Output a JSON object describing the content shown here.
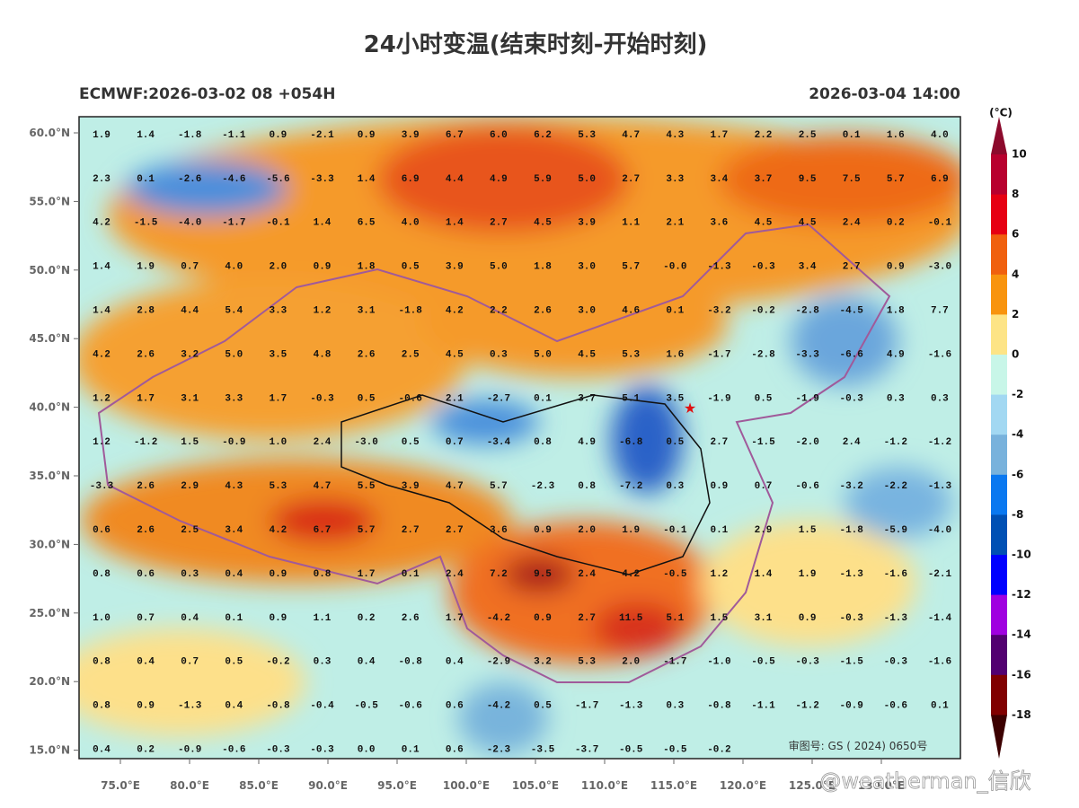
{
  "title": "24小时变温(结束时刻-开始时刻)",
  "model_run": "ECMWF:2026-03-02 08 +054H",
  "valid_time": "2026-03-04 14:00",
  "lat_labels": [
    "60.0°N",
    "55.0°N",
    "50.0°N",
    "45.0°N",
    "40.0°N",
    "35.0°N",
    "30.0°N",
    "25.0°N",
    "20.0°N",
    "15.0°N"
  ],
  "lon_labels": [
    "75.0°E",
    "80.0°E",
    "85.0°E",
    "90.0°E",
    "95.0°E",
    "100.0°E",
    "105.0°E",
    "110.0°E",
    "115.0°E",
    "120.0°E",
    "125.0°E",
    "130.0°E"
  ],
  "grid_values": [
    [
      "1.9",
      "1.4",
      "-1.8",
      "-1.1",
      "0.9",
      "-2.1",
      "0.9",
      "3.9",
      "6.7",
      "6.0",
      "6.2",
      "5.3",
      "4.7",
      "4.3",
      "1.7",
      "2.2",
      "2.5",
      "0.1",
      "1.6",
      "4.0"
    ],
    [
      "2.3",
      "0.1",
      "-2.6",
      "-4.6",
      "-5.6",
      "-3.3",
      "1.4",
      "6.9",
      "4.4",
      "4.9",
      "5.9",
      "5.0",
      "2.7",
      "3.3",
      "3.4",
      "3.7",
      "9.5",
      "7.5",
      "5.7",
      "6.9"
    ],
    [
      "4.2",
      "-1.5",
      "-4.0",
      "-1.7",
      "-0.1",
      "1.4",
      "6.5",
      "4.0",
      "1.4",
      "2.7",
      "4.5",
      "3.9",
      "1.1",
      "2.1",
      "3.6",
      "4.5",
      "4.5",
      "2.4",
      "0.2",
      "-0.1"
    ],
    [
      "1.4",
      "1.9",
      "0.7",
      "4.0",
      "2.0",
      "0.9",
      "1.8",
      "0.5",
      "3.9",
      "5.0",
      "1.8",
      "3.0",
      "5.7",
      "-0.0",
      "-1.3",
      "-0.3",
      "3.4",
      "2.7",
      "0.9",
      "-3.0"
    ],
    [
      "1.4",
      "2.8",
      "4.4",
      "5.4",
      "3.3",
      "1.2",
      "3.1",
      "-1.8",
      "4.2",
      "2.2",
      "2.6",
      "3.0",
      "4.6",
      "0.1",
      "-3.2",
      "-0.2",
      "-2.8",
      "-4.5",
      "1.8",
      "7.7"
    ],
    [
      "4.2",
      "2.6",
      "3.2",
      "5.0",
      "3.5",
      "4.8",
      "2.6",
      "2.5",
      "4.5",
      "0.3",
      "5.0",
      "4.5",
      "5.3",
      "1.6",
      "-1.7",
      "-2.8",
      "-3.3",
      "-6.6",
      "4.9",
      "-1.6"
    ],
    [
      "1.2",
      "1.7",
      "3.1",
      "3.3",
      "1.7",
      "-0.3",
      "0.5",
      "-0.6",
      "2.1",
      "-2.7",
      "0.1",
      "3.7",
      "5.1",
      "3.5",
      "-1.9",
      "0.5",
      "-1.9",
      "-0.3",
      "0.3",
      "0.3"
    ],
    [
      "1.2",
      "-1.2",
      "1.5",
      "-0.9",
      "1.0",
      "2.4",
      "-3.0",
      "0.5",
      "0.7",
      "-3.4",
      "0.8",
      "4.9",
      "-6.8",
      "0.5",
      "2.7",
      "-1.5",
      "-2.0",
      "2.4",
      "-1.2",
      "-1.2"
    ],
    [
      "-3.3",
      "2.6",
      "2.9",
      "4.3",
      "5.3",
      "4.7",
      "5.5",
      "3.9",
      "4.7",
      "5.7",
      "-2.3",
      "0.8",
      "-7.2",
      "0.3",
      "0.9",
      "0.7",
      "-0.6",
      "-3.2",
      "-2.2",
      "-1.3"
    ],
    [
      "0.6",
      "2.6",
      "2.5",
      "3.4",
      "4.2",
      "6.7",
      "5.7",
      "2.7",
      "2.7",
      "3.6",
      "0.9",
      "2.0",
      "1.9",
      "-0.1",
      "0.1",
      "2.9",
      "1.5",
      "-1.8",
      "-5.9",
      "-4.0"
    ],
    [
      "0.8",
      "0.6",
      "0.3",
      "0.4",
      "0.9",
      "0.8",
      "1.7",
      "0.1",
      "2.4",
      "7.2",
      "9.5",
      "2.4",
      "4.2",
      "-0.5",
      "1.2",
      "1.4",
      "1.9",
      "-1.3",
      "-1.6",
      "-2.1"
    ],
    [
      "1.0",
      "0.7",
      "0.4",
      "0.1",
      "0.9",
      "1.1",
      "0.2",
      "2.6",
      "1.7",
      "-4.2",
      "0.9",
      "2.7",
      "11.5",
      "5.1",
      "1.5",
      "3.1",
      "0.9",
      "-0.3",
      "-1.3",
      "-1.4"
    ],
    [
      "0.8",
      "0.4",
      "0.7",
      "0.5",
      "-0.2",
      "0.3",
      "0.4",
      "-0.8",
      "0.4",
      "-2.9",
      "3.2",
      "5.3",
      "2.0",
      "-1.7",
      "-1.0",
      "-0.5",
      "-0.3",
      "-1.5",
      "-0.3",
      "-1.6"
    ],
    [
      "0.8",
      "0.9",
      "-1.3",
      "0.4",
      "-0.8",
      "-0.4",
      "-0.5",
      "-0.6",
      "0.6",
      "-4.2",
      "0.5",
      "-1.7",
      "-1.3",
      "0.3",
      "-0.8",
      "-1.1",
      "-1.2",
      "-0.9",
      "-0.6",
      "0.1"
    ],
    [
      "0.4",
      "0.2",
      "-0.9",
      "-0.6",
      "-0.3",
      "-0.3",
      "0.0",
      "0.1",
      "0.6",
      "-2.3",
      "-3.5",
      "-3.7",
      "-0.5",
      "-0.5",
      "-0.2",
      null,
      null,
      null,
      null,
      null
    ]
  ],
  "colorbar": {
    "unit": "(°C)",
    "labels": [
      "10",
      "8",
      "6",
      "4",
      "2",
      "0",
      "-2",
      "-4",
      "-6",
      "-8",
      "-10",
      "-12",
      "-14",
      "-16",
      "-18"
    ]
  },
  "watermarks": {
    "review_number": "审图号: GS ( 2024) 0650号",
    "credit": "@weatherman_信欣"
  }
}
